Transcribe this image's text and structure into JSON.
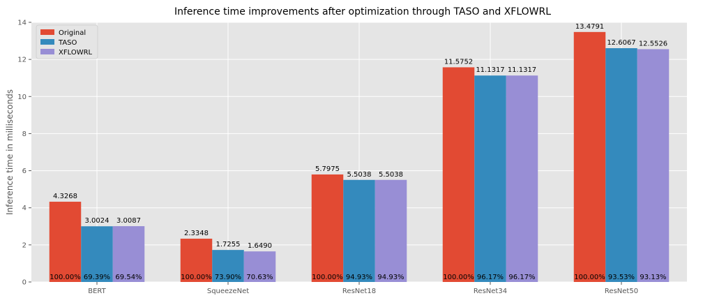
{
  "chart_data": {
    "type": "bar",
    "title": "Inference time improvements after optimization through TASO and XFLOWRL",
    "xlabel": "",
    "ylabel": "Inference time in milliseconds",
    "ylim": [
      0,
      14
    ],
    "yticks": [
      0,
      2,
      4,
      6,
      8,
      10,
      12,
      14
    ],
    "grid": true,
    "legend_position": "top-left",
    "categories": [
      "BERT",
      "SqueezeNet",
      "ResNet18",
      "ResNet34",
      "ResNet50"
    ],
    "series": [
      {
        "name": "Original",
        "color": "#E24A33",
        "values": [
          4.3268,
          2.3348,
          5.7975,
          11.5752,
          13.4791
        ],
        "value_labels": [
          "4.3268",
          "2.3348",
          "5.7975",
          "11.5752",
          "13.4791"
        ],
        "percent_labels": [
          "100.00%",
          "100.00%",
          "100.00%",
          "100.00%",
          "100.00%"
        ]
      },
      {
        "name": "TASO",
        "color": "#348ABD",
        "values": [
          3.0024,
          1.7255,
          5.5038,
          11.1317,
          12.6067
        ],
        "value_labels": [
          "3.0024",
          "1.7255",
          "5.5038",
          "11.1317",
          "12.6067"
        ],
        "percent_labels": [
          "69.39%",
          "73.90%",
          "94.93%",
          "96.17%",
          "93.53%"
        ]
      },
      {
        "name": "XFLOWRL",
        "color": "#988ED5",
        "values": [
          3.0087,
          1.649,
          5.5038,
          11.1317,
          12.5526
        ],
        "value_labels": [
          "3.0087",
          "1.6490",
          "5.5038",
          "11.1317",
          "12.5526"
        ],
        "percent_labels": [
          "69.54%",
          "70.63%",
          "94.93%",
          "96.17%",
          "93.13%"
        ]
      }
    ]
  }
}
